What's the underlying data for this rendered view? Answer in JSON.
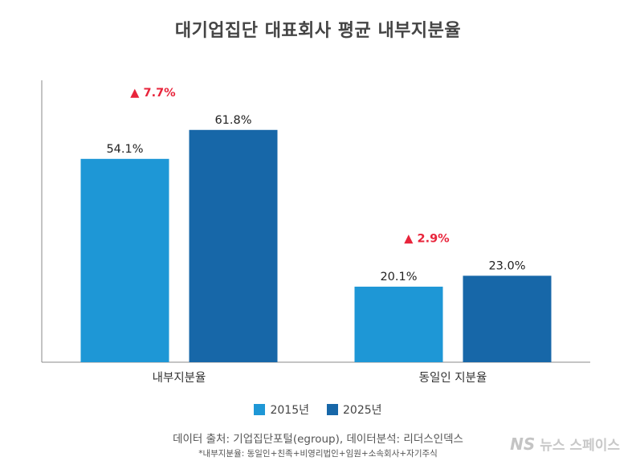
{
  "title": "대기업집단 대표회사 평균 내부지분율",
  "source": "데이터 출처: 기업집단포털(egroup), 데이터분석: 리더스인덱스",
  "note": "*내부지분율: 동일인+친족+비영리법인+임원+소속회사+자기주식",
  "watermark": {
    "mark": "NS",
    "text": "뉴스 스페이스"
  },
  "colors": {
    "series_2015": "#1E97D6",
    "series_2025": "#1767A8",
    "change": "#E8243B"
  },
  "chart_data": {
    "type": "bar",
    "title": "대기업집단 대표회사 평균 내부지분율",
    "categories": [
      "내부지분율",
      "동일인 지분율"
    ],
    "series": [
      {
        "name": "2015년",
        "values": [
          54.1,
          20.1
        ],
        "labels": [
          "54.1%",
          "20.1%"
        ],
        "color": "#1E97D6"
      },
      {
        "name": "2025년",
        "values": [
          61.8,
          23.0
        ],
        "labels": [
          "61.8%",
          "23.0%"
        ],
        "color": "#1767A8"
      }
    ],
    "annotations": [
      "▲ 7.7%",
      "▲ 2.9%"
    ],
    "ylim": [
      0,
      75
    ],
    "grid": false,
    "legend": "bottom-center",
    "xlabel": "",
    "ylabel": ""
  }
}
